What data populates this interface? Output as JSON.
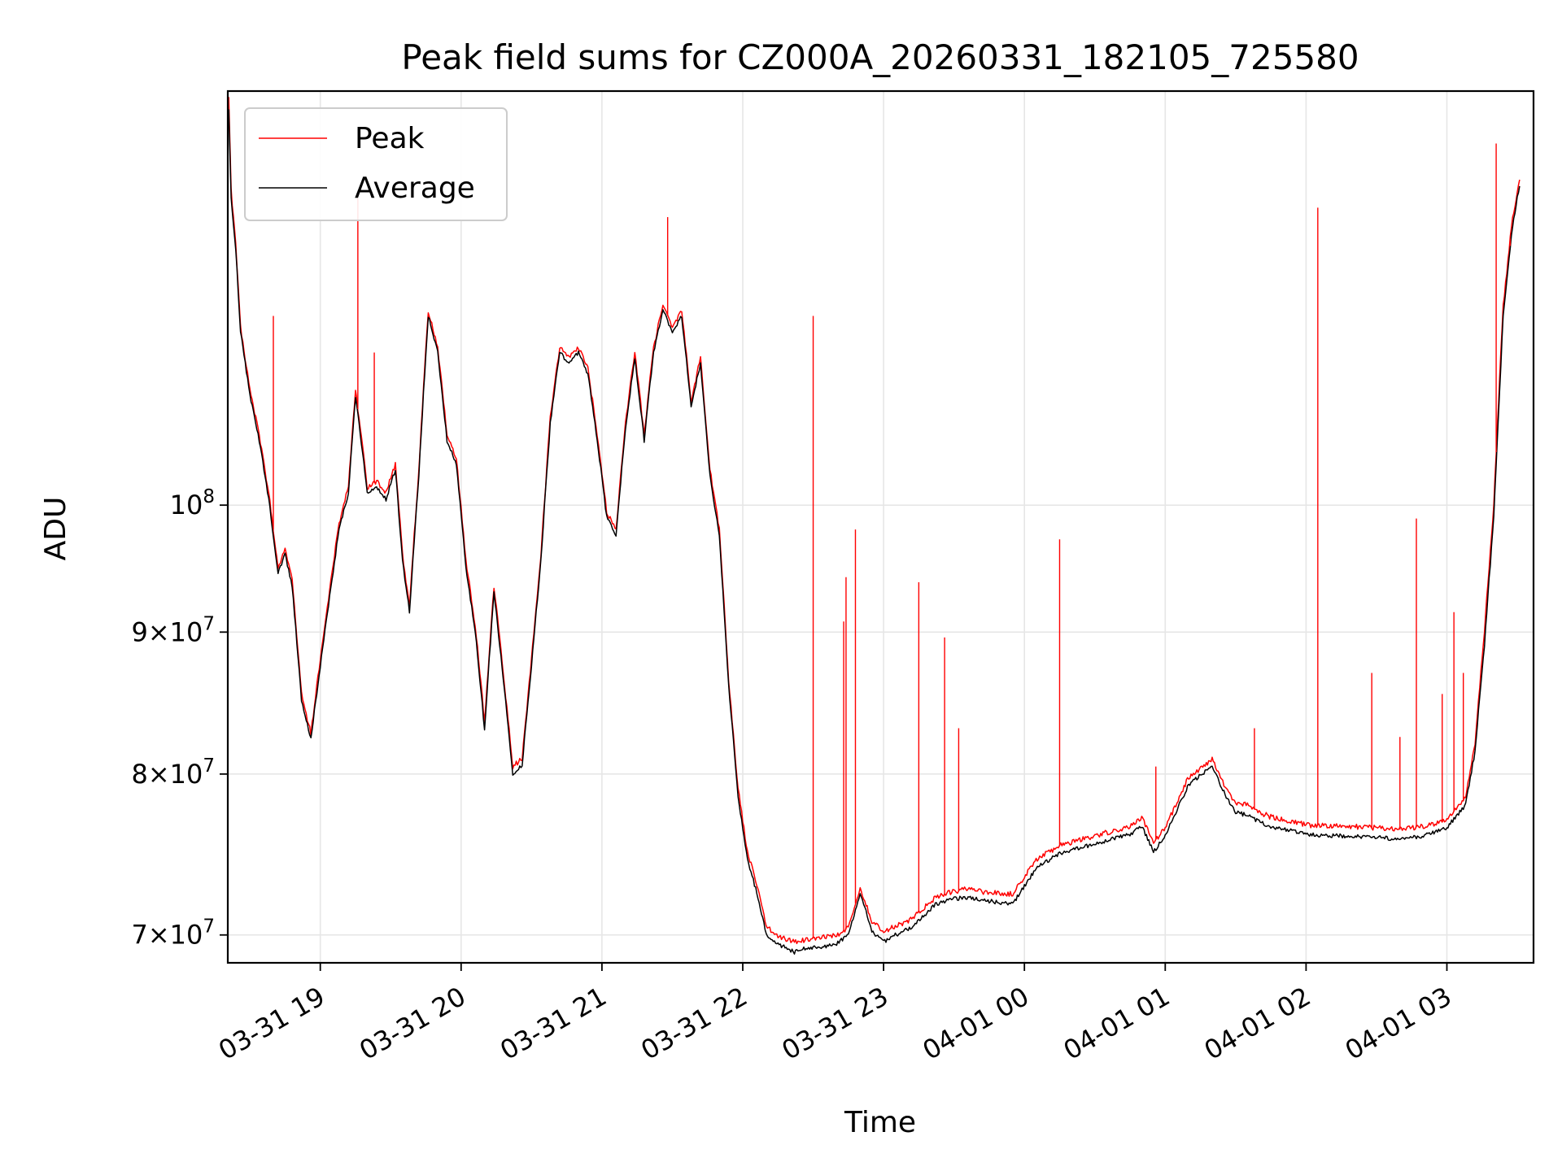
{
  "chart_data": {
    "type": "line",
    "title": "Peak field sums for CZ000A_20260331_182105_725580",
    "xlabel": "Time",
    "ylabel": "ADU",
    "yscale": "log",
    "ylim": [
      68400000,
      141000000
    ],
    "grid": true,
    "legend_position": "upper-left",
    "x_ticks": [
      "03-31 19",
      "03-31 20",
      "03-31 21",
      "03-31 22",
      "03-31 23",
      "04-01 00",
      "04-01 01",
      "04-01 02",
      "04-01 03"
    ],
    "y_ticks": [
      {
        "value": 70000000,
        "mantissa": "7",
        "base": "10",
        "exp": "7"
      },
      {
        "value": 80000000,
        "mantissa": "8",
        "base": "10",
        "exp": "7"
      },
      {
        "value": 90000000,
        "mantissa": "9",
        "base": "10",
        "exp": "7"
      },
      {
        "value": 100000000,
        "mantissa": "",
        "base": "10",
        "exp": "8"
      }
    ],
    "series": [
      {
        "name": "Peak",
        "color": "#ff0000",
        "x": [
          "03-31 18:21",
          "03-31 18:22",
          "03-31 18:24",
          "03-31 18:26",
          "03-31 18:30",
          "03-31 18:34",
          "03-31 18:38",
          "03-31 18:42",
          "03-31 18:45",
          "03-31 18:48",
          "03-31 18:52",
          "03-31 18:56",
          "03-31 19:00",
          "03-31 19:05",
          "03-31 19:08",
          "03-31 19:12",
          "03-31 19:15",
          "03-31 19:20",
          "03-31 19:24",
          "03-31 19:28",
          "03-31 19:32",
          "03-31 19:35",
          "03-31 19:38",
          "03-31 19:42",
          "03-31 19:46",
          "03-31 19:50",
          "03-31 19:54",
          "03-31 19:58",
          "03-31 20:02",
          "03-31 20:06",
          "03-31 20:10",
          "03-31 20:14",
          "03-31 20:18",
          "03-31 20:22",
          "03-31 20:26",
          "03-31 20:30",
          "03-31 20:34",
          "03-31 20:38",
          "03-31 20:42",
          "03-31 20:46",
          "03-31 20:50",
          "03-31 20:54",
          "03-31 20:58",
          "03-31 21:02",
          "03-31 21:06",
          "03-31 21:10",
          "03-31 21:14",
          "03-31 21:18",
          "03-31 21:22",
          "03-31 21:26",
          "03-31 21:30",
          "03-31 21:34",
          "03-31 21:38",
          "03-31 21:42",
          "03-31 21:46",
          "03-31 21:50",
          "03-31 21:54",
          "03-31 21:58",
          "03-31 22:02",
          "03-31 22:06",
          "03-31 22:10",
          "03-31 22:14",
          "03-31 22:18",
          "03-31 22:22",
          "03-31 22:26",
          "03-31 22:30",
          "03-31 22:35",
          "03-31 22:40",
          "03-31 22:45",
          "03-31 22:50",
          "03-31 22:55",
          "03-31 23:00",
          "03-31 23:05",
          "03-31 23:10",
          "03-31 23:14",
          "03-31 23:18",
          "03-31 23:22",
          "03-31 23:28",
          "03-31 23:35",
          "03-31 23:45",
          "03-31 23:55",
          "04-01 00:05",
          "04-01 00:15",
          "04-01 00:25",
          "04-01 00:35",
          "04-01 00:45",
          "04-01 00:50",
          "04-01 00:55",
          "04-01 01:00",
          "04-01 01:10",
          "04-01 01:20",
          "04-01 01:26",
          "04-01 01:30",
          "04-01 01:35",
          "04-01 01:40",
          "04-01 01:45",
          "04-01 01:50",
          "04-01 01:55",
          "04-01 02:00",
          "04-01 02:10",
          "04-01 02:20",
          "04-01 02:30",
          "04-01 02:40",
          "04-01 02:50",
          "04-01 03:00",
          "04-01 03:08",
          "04-01 03:12",
          "04-01 03:16",
          "04-01 03:20",
          "04-01 03:24",
          "04-01 03:28",
          "04-01 03:31"
        ],
        "y": [
          140000000,
          130000000,
          124000000,
          116000000,
          110000000,
          106000000,
          101000000,
          95000000,
          96500000,
          94000000,
          85500000,
          82700000,
          88000000,
          94500000,
          98500000,
          101500000,
          110000000,
          101500000,
          102000000,
          101000000,
          103500000,
          96000000,
          92000000,
          103000000,
          117500000,
          114000000,
          106000000,
          104000000,
          95500000,
          90500000,
          83500000,
          93500000,
          87000000,
          80500000,
          81000000,
          88000000,
          96000000,
          107500000,
          114000000,
          113000000,
          114000000,
          112000000,
          106000000,
          99500000,
          98000000,
          107000000,
          113500000,
          106000000,
          114000000,
          118000000,
          116000000,
          117500000,
          109000000,
          113000000,
          103000000,
          98000000,
          86500000,
          79000000,
          75000000,
          73000000,
          70500000,
          70000000,
          69800000,
          69600000,
          69700000,
          69800000,
          69900000,
          70000000,
          70400000,
          72800000,
          70800000,
          70200000,
          70500000,
          70800000,
          71200000,
          71700000,
          72200000,
          72500000,
          72700000,
          72500000,
          72400000,
          74500000,
          75400000,
          75800000,
          76200000,
          76600000,
          77200000,
          75600000,
          76500000,
          79800000,
          81000000,
          79000000,
          78000000,
          78000000,
          77500000,
          77200000,
          77000000,
          76900000,
          76700000,
          76600000,
          76600000,
          76500000,
          76400000,
          76600000,
          77000000,
          78500000,
          82000000,
          90000000,
          100000000,
          118000000,
          127000000,
          131000000
        ]
      },
      {
        "name": "Average",
        "color": "#000000",
        "x": [
          "03-31 18:21",
          "03-31 18:22",
          "03-31 18:24",
          "03-31 18:26",
          "03-31 18:30",
          "03-31 18:34",
          "03-31 18:38",
          "03-31 18:42",
          "03-31 18:45",
          "03-31 18:48",
          "03-31 18:52",
          "03-31 18:56",
          "03-31 19:00",
          "03-31 19:05",
          "03-31 19:08",
          "03-31 19:12",
          "03-31 19:15",
          "03-31 19:20",
          "03-31 19:24",
          "03-31 19:28",
          "03-31 19:32",
          "03-31 19:35",
          "03-31 19:38",
          "03-31 19:42",
          "03-31 19:46",
          "03-31 19:50",
          "03-31 19:54",
          "03-31 19:58",
          "03-31 20:02",
          "03-31 20:06",
          "03-31 20:10",
          "03-31 20:14",
          "03-31 20:18",
          "03-31 20:22",
          "03-31 20:26",
          "03-31 20:30",
          "03-31 20:34",
          "03-31 20:38",
          "03-31 20:42",
          "03-31 20:46",
          "03-31 20:50",
          "03-31 20:54",
          "03-31 20:58",
          "03-31 21:02",
          "03-31 21:06",
          "03-31 21:10",
          "03-31 21:14",
          "03-31 21:18",
          "03-31 21:22",
          "03-31 21:26",
          "03-31 21:30",
          "03-31 21:34",
          "03-31 21:38",
          "03-31 21:42",
          "03-31 21:46",
          "03-31 21:50",
          "03-31 21:54",
          "03-31 21:58",
          "03-31 22:02",
          "03-31 22:06",
          "03-31 22:10",
          "03-31 22:14",
          "03-31 22:18",
          "03-31 22:22",
          "03-31 22:26",
          "03-31 22:30",
          "03-31 22:35",
          "03-31 22:40",
          "03-31 22:45",
          "03-31 22:50",
          "03-31 22:55",
          "03-31 23:00",
          "03-31 23:05",
          "03-31 23:10",
          "03-31 23:14",
          "03-31 23:18",
          "03-31 23:22",
          "03-31 23:28",
          "03-31 23:35",
          "03-31 23:45",
          "03-31 23:55",
          "04-01 00:05",
          "04-01 00:15",
          "04-01 00:25",
          "04-01 00:35",
          "04-01 00:45",
          "04-01 00:50",
          "04-01 00:55",
          "04-01 01:00",
          "04-01 01:10",
          "04-01 01:20",
          "04-01 01:26",
          "04-01 01:30",
          "04-01 01:35",
          "04-01 01:40",
          "04-01 01:45",
          "04-01 01:50",
          "04-01 01:55",
          "04-01 02:00",
          "04-01 02:10",
          "04-01 02:20",
          "04-01 02:30",
          "04-01 02:40",
          "04-01 02:50",
          "04-01 03:00",
          "04-01 03:08",
          "04-01 03:12",
          "04-01 03:16",
          "04-01 03:20",
          "04-01 03:24",
          "04-01 03:28",
          "04-01 03:31"
        ],
        "y": [
          139000000,
          129000000,
          123500000,
          115500000,
          109500000,
          105500000,
          100500000,
          94500000,
          96000000,
          93500000,
          85000000,
          82400000,
          87500000,
          94000000,
          98000000,
          101000000,
          109500000,
          101000000,
          101500000,
          100500000,
          103000000,
          95500000,
          91500000,
          102500000,
          117000000,
          113500000,
          105500000,
          103500000,
          95000000,
          90000000,
          83000000,
          93000000,
          86500000,
          80000000,
          80600000,
          87500000,
          95500000,
          107000000,
          113500000,
          112500000,
          113500000,
          111500000,
          105500000,
          99000000,
          97500000,
          106500000,
          113000000,
          105500000,
          113500000,
          117500000,
          115500000,
          117000000,
          108500000,
          112500000,
          102500000,
          97500000,
          86000000,
          78500000,
          74500000,
          72500000,
          70000000,
          69500000,
          69300000,
          69000000,
          69200000,
          69300000,
          69300000,
          69500000,
          70000000,
          72500000,
          70200000,
          69600000,
          70000000,
          70300000,
          70700000,
          71200000,
          71800000,
          72100000,
          72200000,
          72000000,
          71800000,
          74000000,
          74900000,
          75300000,
          75700000,
          76100000,
          76600000,
          75000000,
          76000000,
          79300000,
          80500000,
          78500000,
          77500000,
          77300000,
          76900000,
          76600000,
          76400000,
          76300000,
          76100000,
          76000000,
          76000000,
          75900000,
          75800000,
          76000000,
          76500000,
          78000000,
          81500000,
          89000000,
          99000000,
          117000000,
          126000000,
          130500000
        ]
      }
    ],
    "spikes": {
      "Peak": [
        {
          "x": "03-31 18:40",
          "y": 117000000
        },
        {
          "x": "03-31 19:16",
          "y": 129000000
        },
        {
          "x": "03-31 19:23",
          "y": 113500000
        },
        {
          "x": "03-31 21:28",
          "y": 127000000
        },
        {
          "x": "03-31 22:30",
          "y": 117000000
        },
        {
          "x": "03-31 22:43",
          "y": 90800000
        },
        {
          "x": "03-31 22:44",
          "y": 94200000
        },
        {
          "x": "03-31 22:48",
          "y": 98000000
        },
        {
          "x": "03-31 23:15",
          "y": 93800000
        },
        {
          "x": "03-31 23:26",
          "y": 89600000
        },
        {
          "x": "03-31 23:32",
          "y": 83100000
        },
        {
          "x": "04-01 00:15",
          "y": 97200000
        },
        {
          "x": "04-01 00:56",
          "y": 80500000
        },
        {
          "x": "04-01 01:38",
          "y": 83100000
        },
        {
          "x": "04-01 02:05",
          "y": 128000000
        },
        {
          "x": "04-01 02:28",
          "y": 87000000
        },
        {
          "x": "04-01 02:40",
          "y": 82500000
        },
        {
          "x": "04-01 02:47",
          "y": 98900000
        },
        {
          "x": "04-01 02:58",
          "y": 85500000
        },
        {
          "x": "04-01 03:03",
          "y": 91500000
        },
        {
          "x": "04-01 03:07",
          "y": 87000000
        },
        {
          "x": "04-01 03:21",
          "y": 135000000
        },
        {
          "x": "04-01 03:27",
          "y": 124000000
        }
      ]
    }
  }
}
